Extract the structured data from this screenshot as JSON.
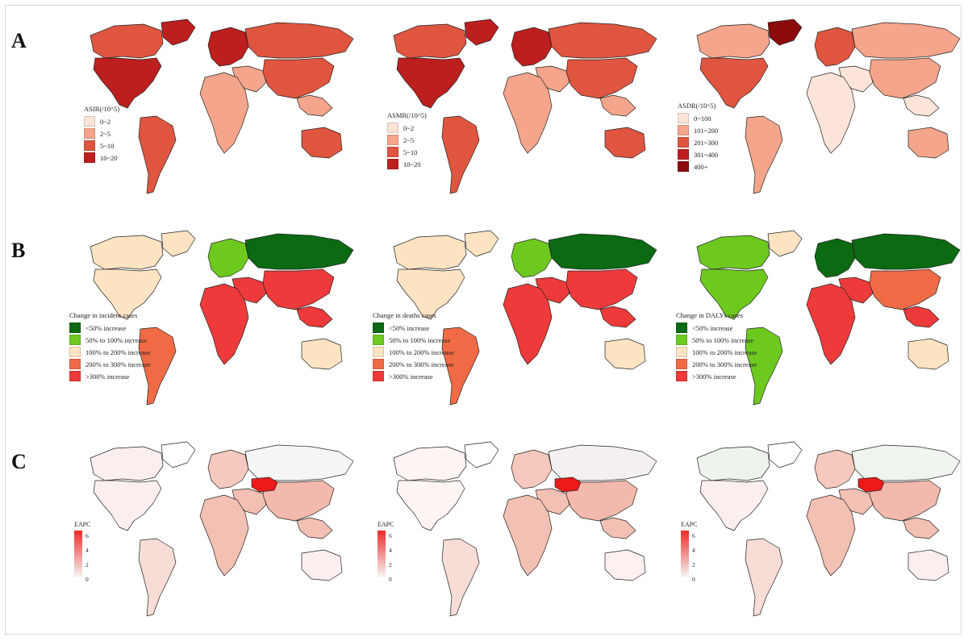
{
  "rows": [
    {
      "label": "A",
      "panels": [
        {
          "legend_type": "category",
          "legend_title": "ASIR(/10^5)",
          "legend_items": [
            {
              "label": "0~2",
              "color": "#fde4d8"
            },
            {
              "label": "2~5",
              "color": "#f5a58b"
            },
            {
              "label": "5~10",
              "color": "#e0553f"
            },
            {
              "label": "10~20",
              "color": "#bd1e1e"
            }
          ],
          "regions": {
            "na": "#bd1e1e",
            "sa": "#e0553f",
            "eu": "#bd1e1e",
            "af": "#f5a58b",
            "me": "#f5a58b",
            "ru": "#e0553f",
            "as": "#e0553f",
            "sea": "#f5a58b",
            "au": "#e0553f",
            "gl": "#bd1e1e",
            "ca": "#e0553f"
          }
        },
        {
          "legend_type": "category",
          "legend_title": "ASMR(/10^5)",
          "legend_items": [
            {
              "label": "0~2",
              "color": "#fde4d8"
            },
            {
              "label": "2~5",
              "color": "#f5a58b"
            },
            {
              "label": "5~10",
              "color": "#e0553f"
            },
            {
              "label": "10~20",
              "color": "#bd1e1e"
            }
          ],
          "regions": {
            "na": "#bd1e1e",
            "sa": "#e0553f",
            "eu": "#bd1e1e",
            "af": "#f5a58b",
            "me": "#f5a58b",
            "ru": "#e0553f",
            "as": "#e0553f",
            "sea": "#f5a58b",
            "au": "#e0553f",
            "gl": "#bd1e1e",
            "ca": "#e0553f"
          }
        },
        {
          "legend_type": "category",
          "legend_title": "ASDR(/10^5)",
          "legend_items": [
            {
              "label": "0~100",
              "color": "#fde4d8"
            },
            {
              "label": "101~200",
              "color": "#f5a58b"
            },
            {
              "label": "201~300",
              "color": "#e0553f"
            },
            {
              "label": "301~400",
              "color": "#bd1e1e"
            },
            {
              "label": "400+",
              "color": "#8b0a0a"
            }
          ],
          "regions": {
            "na": "#e0553f",
            "sa": "#f5a58b",
            "eu": "#e0553f",
            "af": "#fde4d8",
            "me": "#fde4d8",
            "ru": "#f5a58b",
            "as": "#f5a58b",
            "sea": "#fde4d8",
            "au": "#f5a58b",
            "gl": "#8b0a0a",
            "ca": "#f5a58b"
          }
        }
      ]
    },
    {
      "label": "B",
      "panels": [
        {
          "legend_type": "category",
          "legend_title": "Change in incident cases",
          "legend_items": [
            {
              "label": "<50% increase",
              "color": "#0b6a12"
            },
            {
              "label": "50% to 100% increase",
              "color": "#6ec91f"
            },
            {
              "label": "100% to 200% increase",
              "color": "#fce3c2"
            },
            {
              "label": "200% to 300% increase",
              "color": "#f06b45"
            },
            {
              "label": ">300% increase",
              "color": "#ee3a3a"
            }
          ],
          "regions": {
            "na": "#fce3c2",
            "sa": "#f06b45",
            "eu": "#6ec91f",
            "af": "#ee3a3a",
            "me": "#ee3a3a",
            "ru": "#0b6a12",
            "as": "#ee3a3a",
            "sea": "#ee3a3a",
            "au": "#fce3c2",
            "gl": "#fce3c2",
            "ca": "#fce3c2"
          }
        },
        {
          "legend_type": "category",
          "legend_title": "Change in deaths cases",
          "legend_items": [
            {
              "label": "<50% increase",
              "color": "#0b6a12"
            },
            {
              "label": "50% to 100% increase",
              "color": "#6ec91f"
            },
            {
              "label": "100% to 200% increase",
              "color": "#fce3c2"
            },
            {
              "label": "200% to 300% increase",
              "color": "#f06b45"
            },
            {
              "label": ">300% increase",
              "color": "#ee3a3a"
            }
          ],
          "regions": {
            "na": "#fce3c2",
            "sa": "#f06b45",
            "eu": "#6ec91f",
            "af": "#ee3a3a",
            "me": "#ee3a3a",
            "ru": "#0b6a12",
            "as": "#ee3a3a",
            "sea": "#ee3a3a",
            "au": "#fce3c2",
            "gl": "#fce3c2",
            "ca": "#fce3c2"
          }
        },
        {
          "legend_type": "category",
          "legend_title": "Change in DALYs cases",
          "legend_items": [
            {
              "label": "<50% increase",
              "color": "#0b6a12"
            },
            {
              "label": "50% to 100% increase",
              "color": "#6ec91f"
            },
            {
              "label": "100% to 200% increase",
              "color": "#fce3c2"
            },
            {
              "label": "200% to 300% increase",
              "color": "#f06b45"
            },
            {
              "label": ">300% increase",
              "color": "#ee3a3a"
            }
          ],
          "regions": {
            "na": "#6ec91f",
            "sa": "#6ec91f",
            "eu": "#0b6a12",
            "af": "#ee3a3a",
            "me": "#ee3a3a",
            "ru": "#0b6a12",
            "as": "#f06b45",
            "sea": "#ee3a3a",
            "au": "#fce3c2",
            "gl": "#fce3c2",
            "ca": "#6ec91f"
          }
        }
      ]
    },
    {
      "label": "C",
      "panels": [
        {
          "legend_type": "gradient",
          "legend_title": "EAPC",
          "gradient": {
            "low": "#f4f8f6",
            "high": "#ee2a2a",
            "ticks": [
              "6",
              "4",
              "2",
              "0"
            ]
          },
          "regions": {
            "na": "#fbeeee",
            "sa": "#f8dcd6",
            "eu": "#f5c9be",
            "af": "#f3c0b4",
            "me": "#f3c0b4",
            "ru": "#f3f6f4",
            "as": "#f3b9ac",
            "sea": "#f3c0b4",
            "au": "#fbeeee",
            "gl": "#ffffff",
            "ca": "#fbeeee",
            "kz": "#ee1a1a"
          }
        },
        {
          "legend_type": "gradient",
          "legend_title": "EAPC",
          "gradient": {
            "low": "#f4f8f6",
            "high": "#ee2a2a",
            "ticks": [
              "6",
              "4",
              "2",
              "0"
            ]
          },
          "regions": {
            "na": "#fdf4f4",
            "sa": "#f8dcd6",
            "eu": "#f5c9be",
            "af": "#f3c0b4",
            "me": "#f3c0b4",
            "ru": "#f5f0f0",
            "as": "#f3b9ac",
            "sea": "#f3c0b4",
            "au": "#fdf1f0",
            "gl": "#ffffff",
            "ca": "#fdf4f4",
            "kz": "#ee1a1a"
          }
        },
        {
          "legend_type": "gradient",
          "legend_title": "EAPC",
          "gradient": {
            "low": "#f4f8f6",
            "high": "#ee2a2a",
            "ticks": [
              "6",
              "4",
              "2",
              "0"
            ]
          },
          "regions": {
            "na": "#fbeeee",
            "sa": "#f8dcd6",
            "eu": "#f5c9be",
            "af": "#f3c0b4",
            "me": "#f3c0b4",
            "ru": "#eff4ef",
            "as": "#f3b9ac",
            "sea": "#f3c0b4",
            "au": "#fbeeee",
            "gl": "#ffffff",
            "ca": "#eef3ee",
            "kz": "#ee1a1a"
          }
        }
      ]
    }
  ]
}
